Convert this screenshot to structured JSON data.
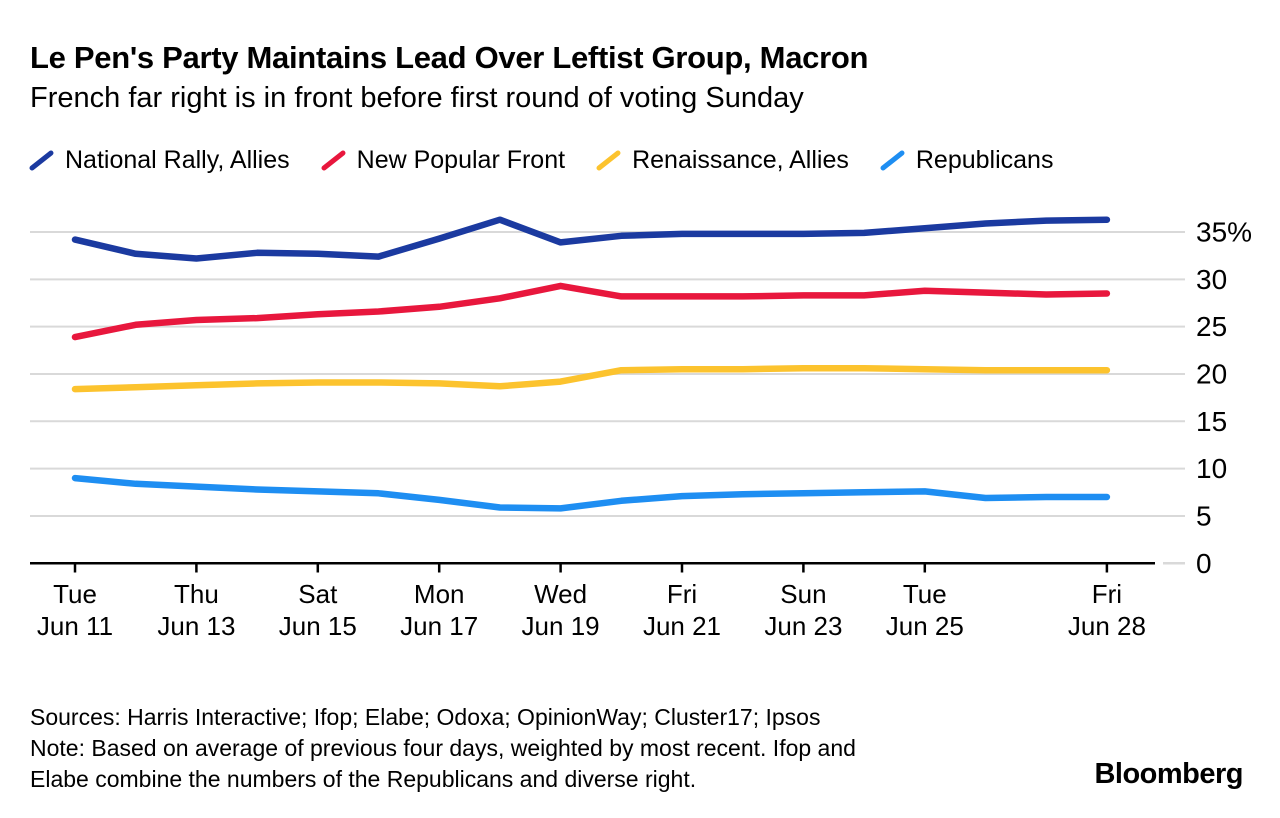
{
  "header": {
    "title": "Le Pen's Party Maintains Lead Over Leftist Group, Macron",
    "subtitle": "French far right is in front before first round of voting Sunday"
  },
  "legend": [
    {
      "label": "National Rally, Allies",
      "color": "#1b3aa0"
    },
    {
      "label": "New Popular Front",
      "color": "#e8173d"
    },
    {
      "label": "Renaissance, Allies",
      "color": "#fcc32e"
    },
    {
      "label": "Republicans",
      "color": "#1e8ef2"
    }
  ],
  "chart_data": {
    "type": "line",
    "title": "Le Pen's Party Maintains Lead Over Leftist Group, Macron",
    "subtitle": "French far right is in front before first round of voting Sunday",
    "x_unit": "day of June 2024",
    "x": [
      11,
      12,
      13,
      14,
      15,
      16,
      17,
      18,
      19,
      20,
      21,
      22,
      23,
      24,
      25,
      26,
      27,
      28
    ],
    "series": [
      {
        "name": "National Rally, Allies",
        "color": "#1b3aa0",
        "values": [
          34.2,
          32.7,
          32.2,
          32.8,
          32.7,
          32.4,
          34.3,
          36.3,
          33.9,
          34.6,
          34.8,
          34.8,
          34.8,
          34.9,
          35.4,
          35.9,
          36.2,
          36.3
        ]
      },
      {
        "name": "New Popular Front",
        "color": "#e8173d",
        "values": [
          23.9,
          25.2,
          25.7,
          25.9,
          26.3,
          26.6,
          27.1,
          28.0,
          29.3,
          28.2,
          28.2,
          28.2,
          28.3,
          28.3,
          28.8,
          28.6,
          28.4,
          28.5
        ]
      },
      {
        "name": "Renaissance, Allies",
        "color": "#fcc32e",
        "values": [
          18.4,
          18.6,
          18.8,
          19.0,
          19.1,
          19.1,
          19.0,
          18.7,
          19.2,
          20.4,
          20.5,
          20.5,
          20.6,
          20.6,
          20.5,
          20.4,
          20.4,
          20.4
        ]
      },
      {
        "name": "Republicans",
        "color": "#1e8ef2",
        "values": [
          9.0,
          8.4,
          8.1,
          7.8,
          7.6,
          7.4,
          6.7,
          5.9,
          5.8,
          6.6,
          7.1,
          7.3,
          7.4,
          7.5,
          7.6,
          6.9,
          7.0,
          7.0
        ]
      }
    ],
    "ylim": [
      0,
      37.5
    ],
    "yticks": [
      0,
      5,
      10,
      15,
      20,
      25,
      30,
      35
    ],
    "ytick_labels": [
      "0",
      "5",
      "10",
      "15",
      "20",
      "25",
      "30",
      "35%"
    ],
    "xticks": [
      {
        "day": "Tue",
        "date": "Jun 11",
        "x": 11
      },
      {
        "day": "Thu",
        "date": "Jun 13",
        "x": 13
      },
      {
        "day": "Sat",
        "date": "Jun 15",
        "x": 15
      },
      {
        "day": "Mon",
        "date": "Jun 17",
        "x": 17
      },
      {
        "day": "Wed",
        "date": "Jun 19",
        "x": 19
      },
      {
        "day": "Fri",
        "date": "Jun 21",
        "x": 21
      },
      {
        "day": "Sun",
        "date": "Jun 23",
        "x": 23
      },
      {
        "day": "Tue",
        "date": "Jun 25",
        "x": 25
      },
      {
        "day": "Fri",
        "date": "Jun 28",
        "x": 28
      }
    ],
    "grid": "horizontal",
    "legend_position": "top",
    "colors": {
      "grid": "#d9d9d9",
      "axis": "#000000"
    }
  },
  "footer": {
    "sources": "Sources: Harris Interactive; Ifop; Elabe; Odoxa; OpinionWay; Cluster17; Ipsos",
    "note_line1": "Note: Based on average of previous four days, weighted by most recent. Ifop and",
    "note_line2": "Elabe combine the numbers of the Republicans and diverse right.",
    "brand": "Bloomberg"
  }
}
